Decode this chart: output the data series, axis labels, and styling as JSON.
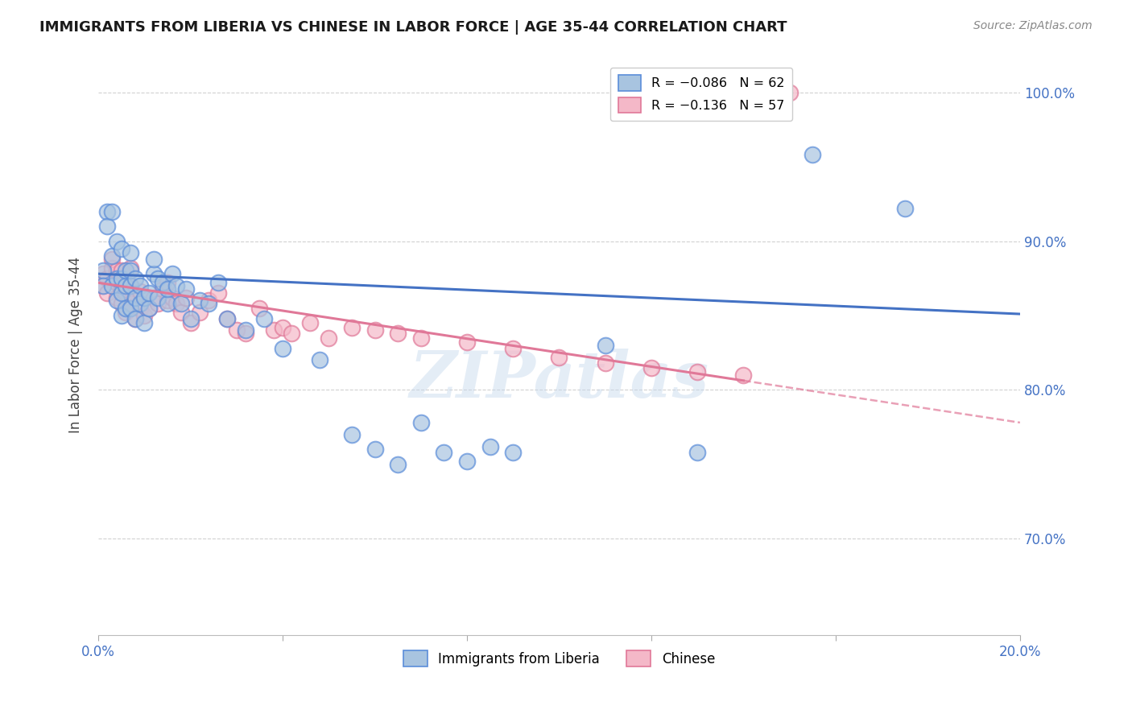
{
  "title": "IMMIGRANTS FROM LIBERIA VS CHINESE IN LABOR FORCE | AGE 35-44 CORRELATION CHART",
  "source": "Source: ZipAtlas.com",
  "ylabel": "In Labor Force | Age 35-44",
  "legend_entries": [
    {
      "label": "R = −0.086   N = 62",
      "color": "#a8c4e0"
    },
    {
      "label": "R = −0.136   N = 57",
      "color": "#f4b8c8"
    }
  ],
  "legend_bottom": [
    "Immigrants from Liberia",
    "Chinese"
  ],
  "liberia_color": "#a8c4e0",
  "chinese_color": "#f4b8c8",
  "liberia_edge_color": "#5b8dd9",
  "chinese_edge_color": "#e07898",
  "liberia_line_color": "#4472c4",
  "chinese_line_color": "#e07898",
  "watermark": "ZIPatlas",
  "liberia_x": [
    0.001,
    0.001,
    0.002,
    0.002,
    0.003,
    0.003,
    0.003,
    0.004,
    0.004,
    0.004,
    0.005,
    0.005,
    0.005,
    0.005,
    0.006,
    0.006,
    0.006,
    0.007,
    0.007,
    0.007,
    0.007,
    0.008,
    0.008,
    0.008,
    0.009,
    0.009,
    0.01,
    0.01,
    0.011,
    0.011,
    0.012,
    0.012,
    0.013,
    0.013,
    0.014,
    0.015,
    0.015,
    0.016,
    0.017,
    0.018,
    0.019,
    0.02,
    0.022,
    0.024,
    0.026,
    0.028,
    0.032,
    0.036,
    0.04,
    0.048,
    0.055,
    0.06,
    0.065,
    0.07,
    0.075,
    0.08,
    0.085,
    0.09,
    0.11,
    0.13,
    0.155,
    0.175
  ],
  "liberia_y": [
    0.88,
    0.87,
    0.92,
    0.91,
    0.87,
    0.89,
    0.92,
    0.86,
    0.875,
    0.9,
    0.85,
    0.865,
    0.875,
    0.895,
    0.855,
    0.87,
    0.88,
    0.855,
    0.87,
    0.88,
    0.892,
    0.848,
    0.862,
    0.875,
    0.858,
    0.87,
    0.845,
    0.862,
    0.855,
    0.865,
    0.878,
    0.888,
    0.875,
    0.862,
    0.872,
    0.858,
    0.868,
    0.878,
    0.87,
    0.858,
    0.868,
    0.848,
    0.86,
    0.858,
    0.872,
    0.848,
    0.84,
    0.848,
    0.828,
    0.82,
    0.77,
    0.76,
    0.75,
    0.778,
    0.758,
    0.752,
    0.762,
    0.758,
    0.83,
    0.758,
    0.958,
    0.922
  ],
  "chinese_x": [
    0.001,
    0.001,
    0.002,
    0.002,
    0.003,
    0.003,
    0.004,
    0.004,
    0.004,
    0.005,
    0.005,
    0.005,
    0.006,
    0.006,
    0.007,
    0.007,
    0.007,
    0.008,
    0.008,
    0.009,
    0.009,
    0.01,
    0.011,
    0.012,
    0.013,
    0.014,
    0.015,
    0.015,
    0.016,
    0.017,
    0.018,
    0.019,
    0.02,
    0.022,
    0.024,
    0.026,
    0.028,
    0.03,
    0.032,
    0.035,
    0.038,
    0.04,
    0.042,
    0.046,
    0.05,
    0.055,
    0.06,
    0.065,
    0.07,
    0.08,
    0.09,
    0.1,
    0.11,
    0.12,
    0.13,
    0.14,
    0.15
  ],
  "chinese_y": [
    0.87,
    0.878,
    0.875,
    0.865,
    0.882,
    0.888,
    0.862,
    0.872,
    0.88,
    0.858,
    0.868,
    0.88,
    0.852,
    0.865,
    0.87,
    0.858,
    0.882,
    0.848,
    0.862,
    0.855,
    0.866,
    0.85,
    0.855,
    0.862,
    0.858,
    0.868,
    0.86,
    0.872,
    0.862,
    0.858,
    0.852,
    0.862,
    0.845,
    0.852,
    0.86,
    0.865,
    0.848,
    0.84,
    0.838,
    0.855,
    0.84,
    0.842,
    0.838,
    0.845,
    0.835,
    0.842,
    0.84,
    0.838,
    0.835,
    0.832,
    0.828,
    0.822,
    0.818,
    0.815,
    0.812,
    0.81,
    1.0
  ],
  "xlim": [
    0.0,
    0.2
  ],
  "ylim": [
    0.635,
    1.025
  ],
  "figsize": [
    14.06,
    8.92
  ],
  "dpi": 100,
  "blue_line_y0": 0.878,
  "blue_line_y1": 0.851,
  "pink_line_y0": 0.872,
  "pink_line_y1": 0.778
}
